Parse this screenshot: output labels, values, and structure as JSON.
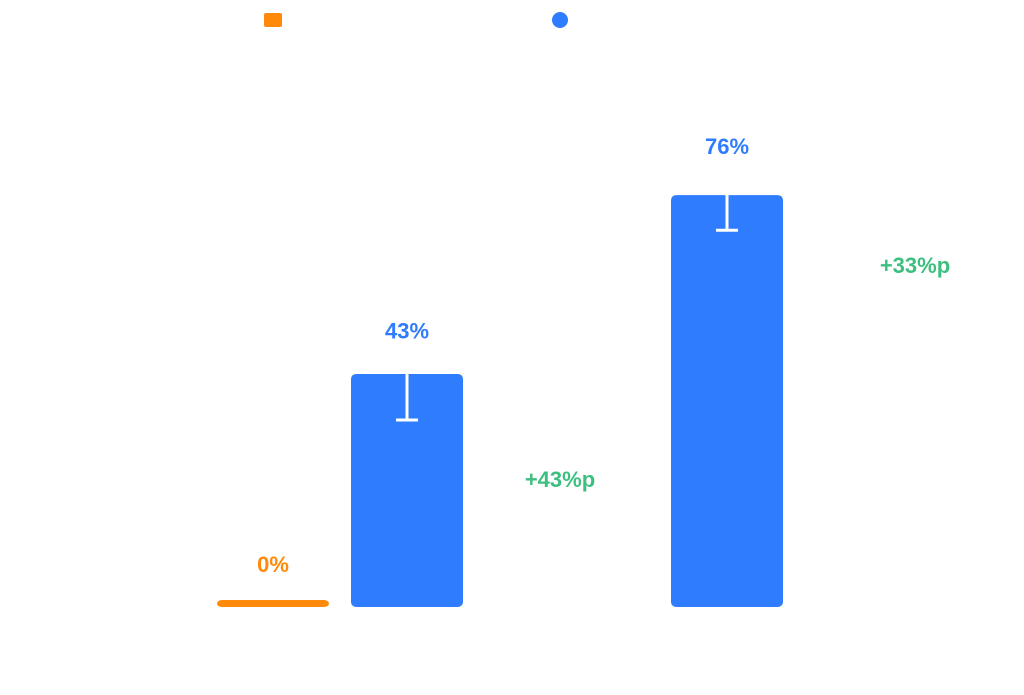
{
  "chart_data": {
    "type": "bar",
    "categories": [
      "",
      ""
    ],
    "series": [
      {
        "name": "",
        "color": "#ff8a0a",
        "legend_marker": "square",
        "values": [
          0,
          null
        ]
      },
      {
        "name": "",
        "color": "#2f7cff",
        "legend_marker": "circle",
        "values": [
          43,
          76
        ],
        "error_low": [
          34.5,
          69.5
        ],
        "error_high": [
          44,
          78
        ]
      }
    ],
    "value_labels": [
      [
        "0%",
        null
      ],
      [
        "43%",
        "76%"
      ]
    ],
    "deltas": [
      {
        "category_index": 0,
        "label": "+43%p"
      },
      {
        "category_index": 1,
        "label": "+33%p"
      }
    ],
    "ylim": [
      0,
      100
    ],
    "yticks": [
      0,
      20,
      40,
      60,
      80,
      100
    ],
    "ytick_labels": [
      "",
      "",
      "",
      "",
      "",
      ""
    ],
    "xlabel": "",
    "ylabel": "",
    "legend_position": "top-center",
    "grid": false,
    "colors": {
      "delta": "#3dbf7f",
      "error_bar": "#ffffff"
    }
  }
}
